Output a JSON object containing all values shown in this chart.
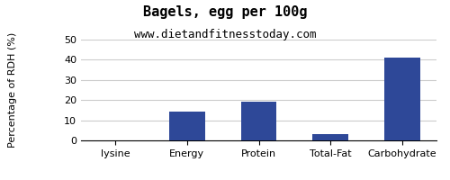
{
  "title": "Bagels, egg per 100g",
  "subtitle": "www.dietandfitnesstoday.com",
  "categories": [
    "lysine",
    "Energy",
    "Protein",
    "Total-Fat",
    "Carbohydrate"
  ],
  "values": [
    0,
    14.5,
    19.0,
    3.2,
    41.0
  ],
  "bar_color": "#2e4898",
  "ylabel": "Percentage of RDH (%)",
  "ylim": [
    0,
    50
  ],
  "yticks": [
    0,
    10,
    20,
    30,
    40,
    50
  ],
  "background_color": "#ffffff",
  "grid_color": "#cccccc",
  "title_fontsize": 11,
  "subtitle_fontsize": 9,
  "tick_fontsize": 8,
  "ylabel_fontsize": 8
}
